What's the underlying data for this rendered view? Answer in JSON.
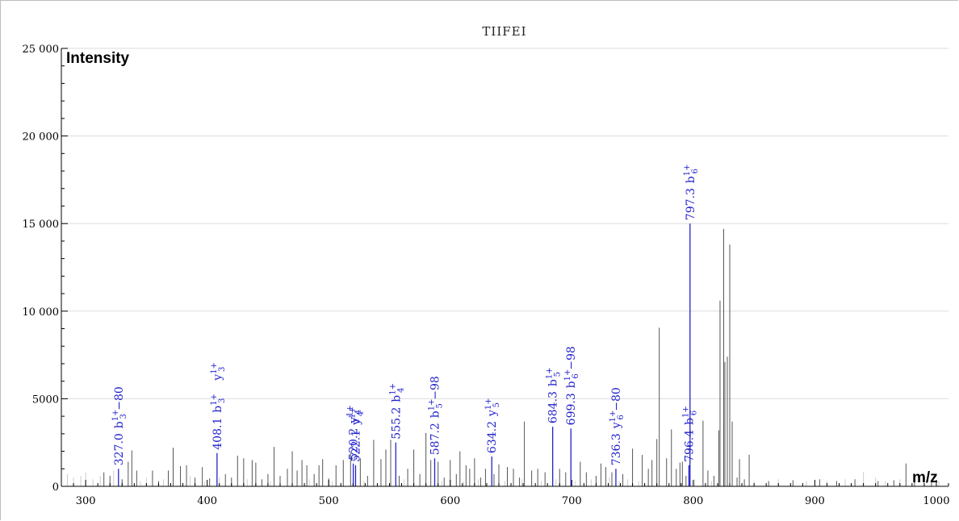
{
  "chart_data": {
    "type": "bar",
    "title": "TIIFEI",
    "xlabel": "m/z",
    "ylabel": "Intensity",
    "xlim": [
      280,
      1010
    ],
    "ylim": [
      0,
      25000
    ],
    "x_ticks": [
      "300",
      "400",
      "500",
      "600",
      "700",
      "800",
      "900",
      "1000"
    ],
    "y_ticks": [
      "0",
      "5000",
      "10 000",
      "15 000",
      "20 000",
      "25 000"
    ],
    "grid": true,
    "colors": {
      "matched": "#2222cc",
      "unmatched": "#555555",
      "noise": "#cccccc",
      "grid": "#dddddd",
      "axis": "#000000"
    },
    "matched_peaks": [
      {
        "mz": 327.0,
        "intensity": 1000,
        "value_label": "327.0",
        "ion": "b",
        "sub": "3",
        "sup": "1+",
        "suffix": " −80"
      },
      {
        "mz": 408.1,
        "intensity": 1900,
        "value_label": "408.1",
        "ion": "b",
        "sub": "3",
        "sup": "1+",
        "suffix": "",
        "ion2": "y",
        "sub2": "3",
        "sup2": "1+"
      },
      {
        "mz": 520.2,
        "intensity": 1300,
        "value_label": "520.2",
        "ion": "y",
        "sub": "4",
        "sup": "1+",
        "suffix": ""
      },
      {
        "mz": 522.1,
        "intensity": 1200,
        "value_label": "522.1",
        "ion": "y",
        "sub": "4",
        "sup": "1+",
        "suffix": ""
      },
      {
        "mz": 555.2,
        "intensity": 2500,
        "value_label": "555.2",
        "ion": "b",
        "sub": "4",
        "sup": "1+",
        "suffix": ""
      },
      {
        "mz": 587.2,
        "intensity": 1600,
        "value_label": "587.2",
        "ion": "b",
        "sub": "5",
        "sup": "1+",
        "suffix": " −98"
      },
      {
        "mz": 634.2,
        "intensity": 1700,
        "value_label": "634.2",
        "ion": "y",
        "sub": "5",
        "sup": "1+",
        "suffix": ""
      },
      {
        "mz": 684.3,
        "intensity": 3400,
        "value_label": "684.3",
        "ion": "b",
        "sub": "5",
        "sup": "1+",
        "suffix": ""
      },
      {
        "mz": 699.3,
        "intensity": 3300,
        "value_label": "699.3",
        "ion": "b",
        "sub": "6",
        "sup": "1+",
        "suffix": " −98"
      },
      {
        "mz": 736.3,
        "intensity": 1000,
        "value_label": "736.3",
        "ion": "y",
        "sub": "6",
        "sup": "1+",
        "suffix": " −80"
      },
      {
        "mz": 796.4,
        "intensity": 1200,
        "value_label": "796.4",
        "ion": "b",
        "sub": "6",
        "sup": "1+",
        "suffix": ""
      },
      {
        "mz": 797.3,
        "intensity": 15000,
        "value_label": "797.3",
        "ion": "b",
        "sub": "6",
        "sup": "1+",
        "suffix": ""
      }
    ],
    "unmatched_peaks": [
      [
        315,
        800
      ],
      [
        320,
        600
      ],
      [
        330,
        400
      ],
      [
        335,
        1400
      ],
      [
        338,
        2050
      ],
      [
        342,
        900
      ],
      [
        355,
        900
      ],
      [
        360,
        300
      ],
      [
        368,
        900
      ],
      [
        372,
        2200
      ],
      [
        378,
        1150
      ],
      [
        383,
        1200
      ],
      [
        390,
        500
      ],
      [
        396,
        1100
      ],
      [
        402,
        450
      ],
      [
        415,
        700
      ],
      [
        420,
        500
      ],
      [
        425,
        1750
      ],
      [
        430,
        1600
      ],
      [
        437,
        1500
      ],
      [
        440,
        1350
      ],
      [
        445,
        400
      ],
      [
        450,
        700
      ],
      [
        455,
        2250
      ],
      [
        460,
        600
      ],
      [
        466,
        1000
      ],
      [
        470,
        2000
      ],
      [
        474,
        900
      ],
      [
        478,
        1500
      ],
      [
        482,
        1200
      ],
      [
        488,
        700
      ],
      [
        492,
        1200
      ],
      [
        495,
        1550
      ],
      [
        500,
        450
      ],
      [
        506,
        1200
      ],
      [
        512,
        1500
      ],
      [
        518,
        1900
      ],
      [
        526,
        1600
      ],
      [
        532,
        600
      ],
      [
        537,
        2650
      ],
      [
        543,
        1550
      ],
      [
        547,
        2100
      ],
      [
        551,
        2650
      ],
      [
        558,
        600
      ],
      [
        565,
        1000
      ],
      [
        570,
        2100
      ],
      [
        575,
        700
      ],
      [
        580,
        3050
      ],
      [
        584,
        1500
      ],
      [
        590,
        1400
      ],
      [
        595,
        500
      ],
      [
        600,
        1500
      ],
      [
        605,
        700
      ],
      [
        608,
        2000
      ],
      [
        613,
        1200
      ],
      [
        616,
        1000
      ],
      [
        620,
        1600
      ],
      [
        625,
        500
      ],
      [
        629,
        1000
      ],
      [
        636,
        700
      ],
      [
        640,
        1250
      ],
      [
        647,
        1100
      ],
      [
        652,
        1000
      ],
      [
        657,
        500
      ],
      [
        661,
        3700
      ],
      [
        667,
        900
      ],
      [
        672,
        1000
      ],
      [
        678,
        800
      ],
      [
        690,
        1000
      ],
      [
        695,
        800
      ],
      [
        707,
        1400
      ],
      [
        712,
        800
      ],
      [
        720,
        600
      ],
      [
        724,
        1300
      ],
      [
        728,
        1100
      ],
      [
        733,
        800
      ],
      [
        742,
        700
      ],
      [
        750,
        2150
      ],
      [
        758,
        1800
      ],
      [
        763,
        1000
      ],
      [
        766,
        1500
      ],
      [
        770,
        2700
      ],
      [
        772,
        9050
      ],
      [
        778,
        1600
      ],
      [
        782,
        3250
      ],
      [
        786,
        1000
      ],
      [
        789,
        1350
      ],
      [
        791,
        1400
      ],
      [
        794,
        600
      ],
      [
        808,
        3750
      ],
      [
        812,
        900
      ],
      [
        817,
        600
      ],
      [
        821,
        3200
      ],
      [
        822,
        10600
      ],
      [
        825,
        14700
      ],
      [
        826,
        7100
      ],
      [
        828,
        7400
      ],
      [
        830,
        13800
      ],
      [
        832,
        3700
      ],
      [
        836,
        500
      ],
      [
        838,
        1550
      ],
      [
        842,
        400
      ],
      [
        846,
        1800
      ],
      [
        862,
        300
      ],
      [
        882,
        350
      ],
      [
        904,
        400
      ],
      [
        918,
        300
      ],
      [
        933,
        400
      ],
      [
        952,
        300
      ],
      [
        965,
        350
      ],
      [
        975,
        1300
      ],
      [
        982,
        350
      ],
      [
        996,
        300
      ]
    ],
    "noise_peaks": [
      [
        285,
        700
      ],
      [
        290,
        500
      ],
      [
        296,
        600
      ],
      [
        300,
        800
      ],
      [
        306,
        400
      ],
      [
        312,
        600
      ],
      [
        323,
        900
      ],
      [
        345,
        300
      ],
      [
        350,
        500
      ],
      [
        364,
        400
      ],
      [
        386,
        600
      ],
      [
        398,
        300
      ],
      [
        408,
        400
      ],
      [
        410,
        500
      ],
      [
        433,
        400
      ],
      [
        452,
        300
      ],
      [
        484,
        400
      ],
      [
        503,
        300
      ],
      [
        529,
        300
      ],
      [
        562,
        400
      ],
      [
        593,
        300
      ],
      [
        611,
        300
      ],
      [
        623,
        400
      ],
      [
        645,
        300
      ],
      [
        659,
        400
      ],
      [
        675,
        300
      ],
      [
        687,
        400
      ],
      [
        703,
        300
      ],
      [
        716,
        400
      ],
      [
        731,
        500
      ],
      [
        739,
        300
      ],
      [
        746,
        400
      ],
      [
        755,
        300
      ],
      [
        801,
        400
      ],
      [
        815,
        300
      ],
      [
        850,
        300
      ],
      [
        870,
        400
      ],
      [
        893,
        300
      ],
      [
        910,
        300
      ],
      [
        925,
        400
      ],
      [
        940,
        800
      ],
      [
        950,
        500
      ],
      [
        958,
        300
      ],
      [
        970,
        400
      ],
      [
        990,
        300
      ],
      [
        1002,
        300
      ]
    ]
  }
}
